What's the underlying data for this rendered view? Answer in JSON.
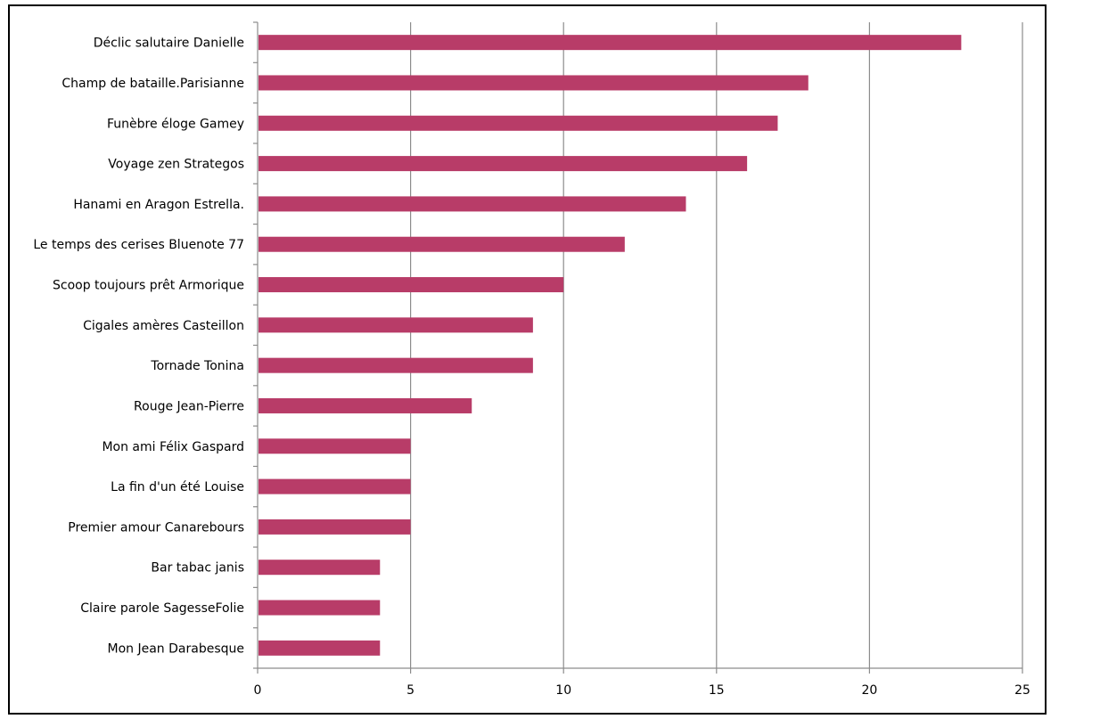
{
  "chart_data": {
    "type": "bar",
    "orientation": "horizontal",
    "title": "",
    "xlabel": "",
    "ylabel": "",
    "xlim": [
      0,
      25
    ],
    "xticks": [
      0,
      5,
      10,
      15,
      20,
      25
    ],
    "grid": "vertical major gridlines",
    "legend": "none",
    "bar_color": "#b83c68",
    "categories": [
      "Déclic salutaire Danielle",
      "Champ de bataille.Parisianne",
      "Funèbre éloge Gamey",
      "Voyage zen Strategos",
      "Hanami en Aragon Estrella.",
      "Le temps des cerises Bluenote 77",
      "Scoop toujours prêt Armorique",
      "Cigales amères Casteillon",
      "Tornade Tonina",
      "Rouge Jean-Pierre",
      "Mon ami Félix Gaspard",
      "La fin d'un été Louise",
      "Premier amour Canarebours",
      "Bar tabac janis",
      "Claire parole SagesseFolie",
      "Mon Jean Darabesque"
    ],
    "values": [
      23,
      18,
      17,
      16,
      14,
      12,
      10,
      9,
      9,
      7,
      5,
      5,
      5,
      4,
      4,
      4
    ]
  }
}
